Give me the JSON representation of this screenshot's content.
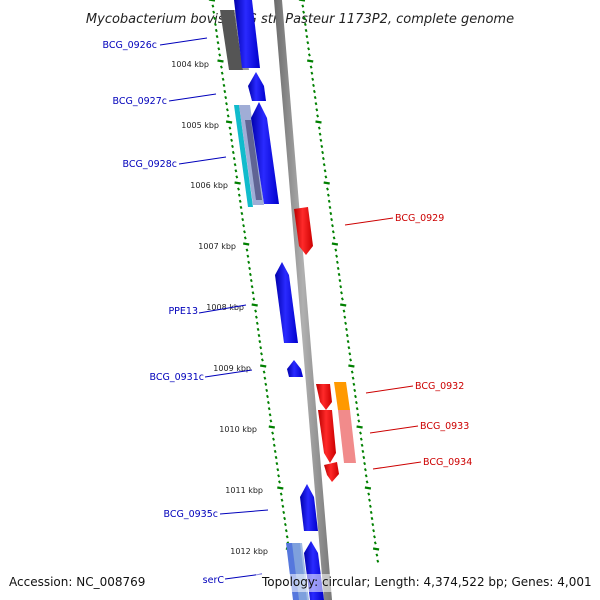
{
  "title": "Mycobacterium bovis BCG str. Pasteur 1173P2, complete genome",
  "footer": {
    "accession": "Accession: NC_008769",
    "topology": "Topology: circular; Length: 4,374,522 bp; Genes: 4,001"
  },
  "colors": {
    "gene_forward": "#0000ee",
    "gene_reverse": "#ee0000",
    "label_forward": "#0000bb",
    "label_reverse": "#cc0000",
    "tick": "#008000",
    "backbone": "#808080",
    "orange": "#ff9900",
    "cyan": "#11bbcc"
  },
  "ticks": [
    "1004 kbp",
    "1005 kbp",
    "1006 kbp",
    "1007 kbp",
    "1008 kbp",
    "1009 kbp",
    "1010 kbp",
    "1011 kbp",
    "1012 kbp"
  ],
  "genes": [
    {
      "name": "BCG_0926c",
      "strand": "forward"
    },
    {
      "name": "BCG_0927c",
      "strand": "forward"
    },
    {
      "name": "BCG_0928c",
      "strand": "forward"
    },
    {
      "name": "BCG_0929",
      "strand": "reverse"
    },
    {
      "name": "PPE13",
      "strand": "forward"
    },
    {
      "name": "BCG_0931c",
      "strand": "forward"
    },
    {
      "name": "BCG_0932",
      "strand": "reverse"
    },
    {
      "name": "BCG_0933",
      "strand": "reverse"
    },
    {
      "name": "BCG_0934",
      "strand": "reverse"
    },
    {
      "name": "BCG_0935c",
      "strand": "forward"
    },
    {
      "name": "serC",
      "strand": "forward"
    }
  ]
}
